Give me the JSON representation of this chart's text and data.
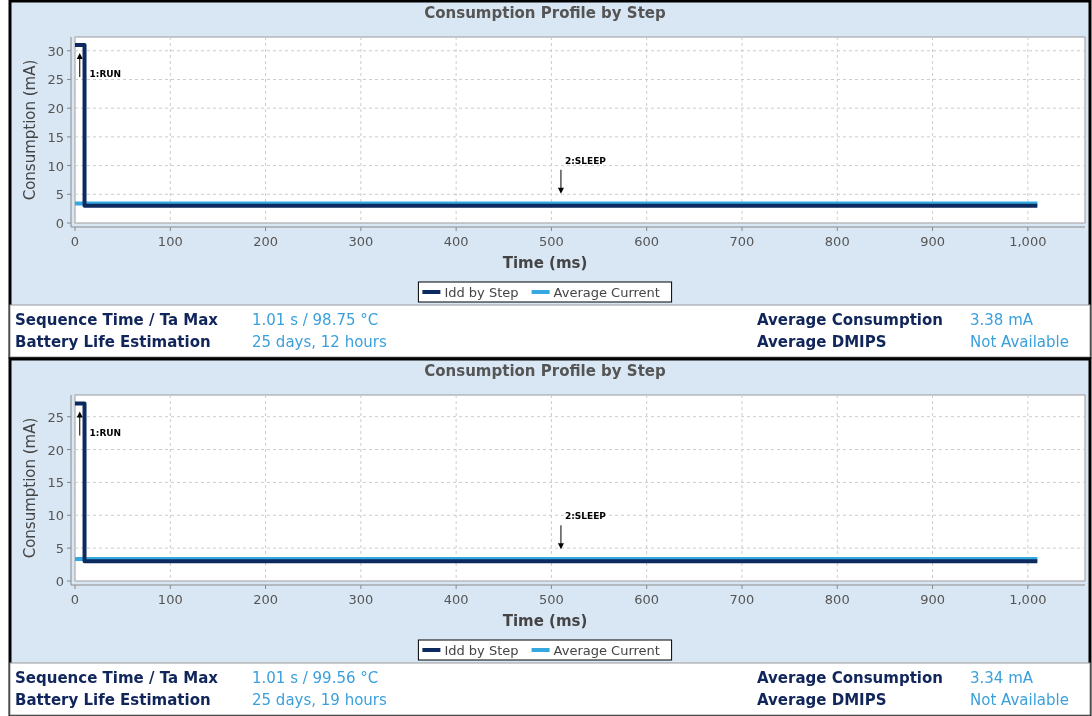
{
  "chart_data": [
    {
      "type": "step",
      "title": "Consumption Profile by Step",
      "xlabel": "Time (ms)",
      "ylabel": "Consumption (mA)",
      "xlim": [
        0,
        1060
      ],
      "ylim": [
        0,
        32.4
      ],
      "xticks": [
        0,
        100,
        200,
        300,
        400,
        500,
        600,
        700,
        800,
        900,
        {
          "value": 1000,
          "label": "1,000"
        }
      ],
      "yticks": [
        0,
        5,
        10,
        15,
        20,
        25,
        30
      ],
      "grid": true,
      "legend": "bottom",
      "series": [
        {
          "name": "Idd by Step",
          "color": "#0d2a5e",
          "x": [
            0,
            10,
            1010
          ],
          "values": [
            31,
            3,
            3
          ]
        },
        {
          "name": "Average Current",
          "type": "line",
          "color": "#35a8e0",
          "x": [
            0,
            1010
          ],
          "values": [
            3.38,
            3.38
          ]
        }
      ],
      "annotations": [
        "1:RUN",
        "2:SLEEP",
        "Sequence Time / Ta Max",
        "1.01 s / 98.75 °C",
        "Average Consumption",
        "3.38 mA",
        "Battery Life Estimation",
        "25 days, 12 hours",
        "Average DMIPS",
        "Not Available"
      ]
    },
    {
      "type": "step",
      "title": "Consumption Profile by Step",
      "xlabel": "Time (ms)",
      "ylabel": "Consumption (mA)",
      "xlim": [
        0,
        1060
      ],
      "ylim": [
        0,
        28.3
      ],
      "xticks": [
        0,
        100,
        200,
        300,
        400,
        500,
        600,
        700,
        800,
        900,
        {
          "value": 1000,
          "label": "1,000"
        }
      ],
      "yticks": [
        0,
        5,
        10,
        15,
        20,
        25
      ],
      "grid": true,
      "legend": "bottom",
      "series": [
        {
          "name": "Idd by Step",
          "color": "#0d2a5e",
          "x": [
            0,
            10,
            1010
          ],
          "values": [
            27,
            3,
            3
          ]
        },
        {
          "name": "Average Current",
          "type": "line",
          "color": "#35a8e0",
          "x": [
            0,
            1010
          ],
          "values": [
            3.34,
            3.34
          ]
        }
      ],
      "annotations": [
        "1:RUN",
        "2:SLEEP",
        "Sequence Time / Ta Max",
        "1.01 s / 99.56 °C",
        "Average Consumption",
        "3.34 mA",
        "Battery Life Estimation",
        "25 days, 19 hours",
        "Average DMIPS",
        "Not Available"
      ]
    }
  ]
}
